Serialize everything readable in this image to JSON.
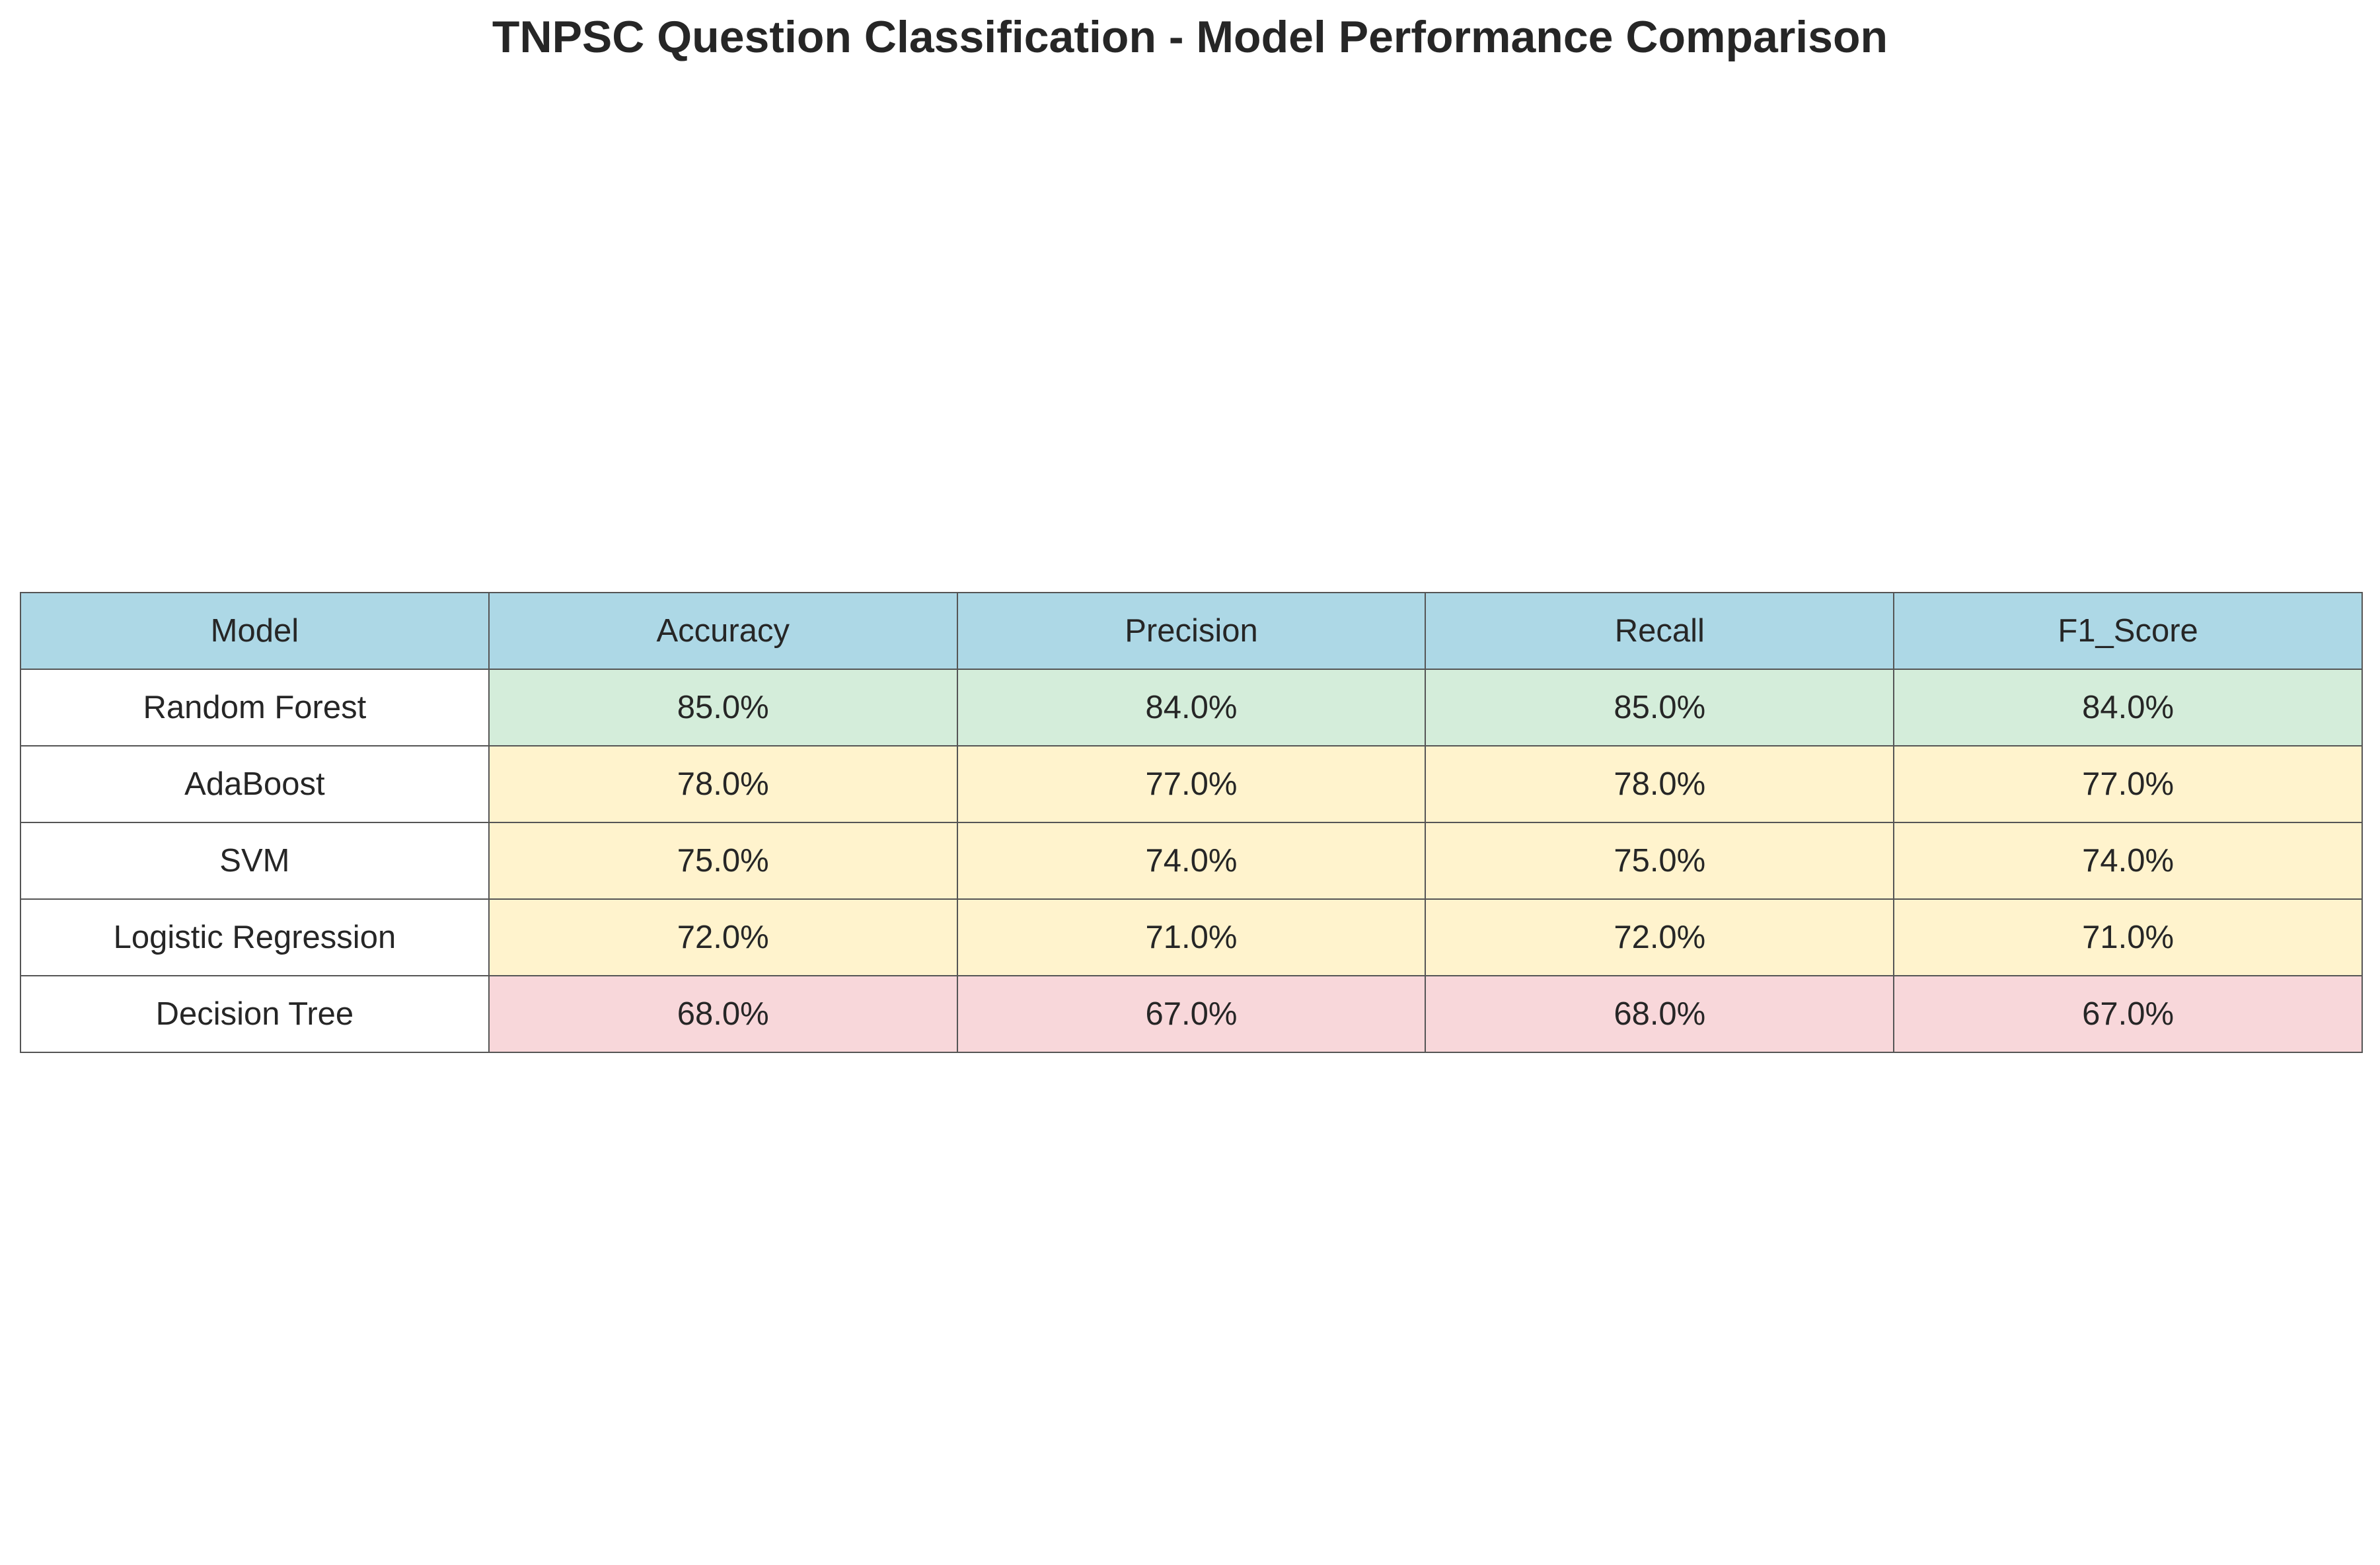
{
  "chart_data": {
    "type": "table",
    "title": "TNPSC Question Classification - Model Performance Comparison",
    "columns": [
      "Model",
      "Accuracy",
      "Precision",
      "Recall",
      "F1_Score"
    ],
    "rows": [
      {
        "model": "Random Forest",
        "values": [
          "85.0%",
          "84.0%",
          "85.0%",
          "84.0%"
        ],
        "tier": "high"
      },
      {
        "model": "AdaBoost",
        "values": [
          "78.0%",
          "77.0%",
          "78.0%",
          "77.0%"
        ],
        "tier": "mid"
      },
      {
        "model": "SVM",
        "values": [
          "75.0%",
          "74.0%",
          "75.0%",
          "74.0%"
        ],
        "tier": "mid"
      },
      {
        "model": "Logistic Regression",
        "values": [
          "72.0%",
          "71.0%",
          "72.0%",
          "71.0%"
        ],
        "tier": "mid"
      },
      {
        "model": "Decision Tree",
        "values": [
          "68.0%",
          "67.0%",
          "68.0%",
          "67.0%"
        ],
        "tier": "low"
      }
    ],
    "colors": {
      "header": "#add8e6",
      "high": "#d4edda",
      "mid": "#fff3cd",
      "low": "#f8d7da",
      "model_cell": "#ffffff",
      "border": "#555555"
    }
  }
}
